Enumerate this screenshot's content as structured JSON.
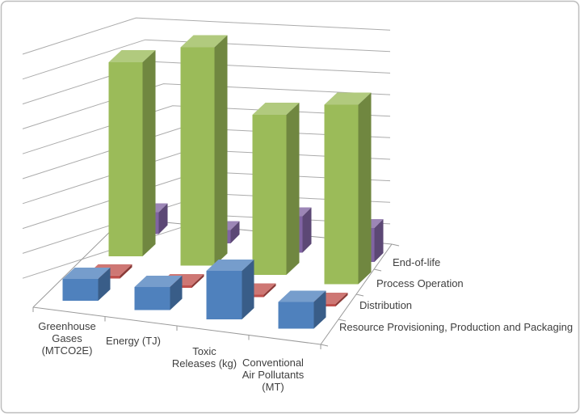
{
  "window": {
    "background": "#FFFFFF",
    "frame_border_color": "#BDBDBD"
  },
  "chart_data": {
    "type": "bar",
    "projection": "3d",
    "title": "",
    "legend": "none",
    "categories": [
      "Greenhouse Gases (MTCO2E)",
      "Energy (TJ)",
      "Toxic Releases (kg)",
      "Conventional Air Pollutants (MT)"
    ],
    "category_label_lines": [
      [
        "Greenhouse",
        "Gases",
        "(MTCO2E)"
      ],
      [
        "Energy (TJ)"
      ],
      [
        "Toxic",
        "Releases (kg)"
      ],
      [
        "Conventional",
        "Air Pollutants",
        "(MT)"
      ]
    ],
    "series": [
      {
        "name": "Resource Provisioning, Production and Packaging",
        "color": "#4F81BD",
        "values": [
          0.9,
          0.95,
          2.0,
          1.1
        ]
      },
      {
        "name": "Distribution",
        "color": "#C0504D",
        "values": [
          0.12,
          0.1,
          0.1,
          0.1
        ]
      },
      {
        "name": "Process Operation",
        "color": "#9BBB59",
        "values": [
          8.0,
          9.0,
          6.6,
          7.4
        ]
      },
      {
        "name": "End-of-life",
        "color": "#8064A2",
        "values": [
          0.9,
          0.55,
          1.5,
          1.4
        ]
      }
    ],
    "series_axis_labels_back_to_front": [
      "End-of-life",
      "Process Operation",
      "Distribution",
      "Resource Provisioning, Production and Packaging"
    ],
    "value_axis": {
      "tick_labels": [],
      "gridline_count": 10,
      "note": "no numeric labels shown in chart; values estimated in gridline units"
    },
    "colors": {
      "gridline": "#ABABAB",
      "axis_line": "#9A9A9A",
      "label_text": "#3F3F3F"
    }
  }
}
